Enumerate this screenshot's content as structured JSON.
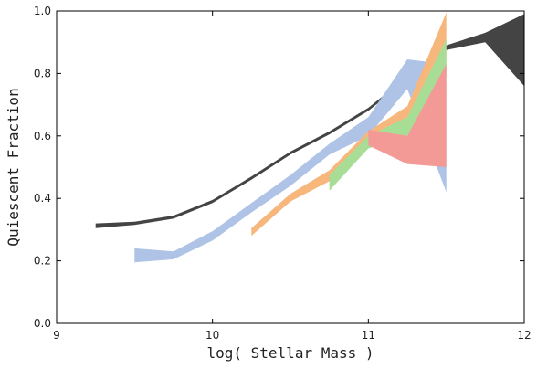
{
  "chart_data": {
    "type": "area",
    "xlabel": "log( Stellar Mass )",
    "ylabel": "Quiescent Fraction",
    "xlim": [
      9,
      12
    ],
    "ylim": [
      0.0,
      1.0
    ],
    "xticks": [
      9,
      10,
      11,
      12
    ],
    "xtick_labels": [
      "9",
      "10",
      "11",
      "12"
    ],
    "yticks": [
      0.0,
      0.2,
      0.4,
      0.6,
      0.8,
      1.0
    ],
    "ytick_labels": [
      "0.0",
      "0.2",
      "0.4",
      "0.6",
      "0.8",
      "1.0"
    ],
    "grid": false,
    "series": [
      {
        "color": "#444444",
        "x": [
          9.25,
          9.5,
          9.75,
          10.0,
          10.25,
          10.5,
          10.75,
          11.0,
          11.25,
          11.5,
          11.75,
          12.0
        ],
        "lower": [
          0.305,
          0.315,
          0.335,
          0.385,
          0.46,
          0.54,
          0.605,
          0.68,
          0.78,
          0.875,
          0.9,
          0.76
        ],
        "upper": [
          0.32,
          0.325,
          0.345,
          0.395,
          0.47,
          0.55,
          0.615,
          0.69,
          0.79,
          0.89,
          0.93,
          0.99
        ]
      },
      {
        "color": "#aec3e6",
        "x": [
          9.5,
          9.75,
          10.0,
          10.25,
          10.5,
          10.75,
          11.0,
          11.25,
          11.5
        ],
        "lower": [
          0.195,
          0.205,
          0.265,
          0.355,
          0.44,
          0.54,
          0.6,
          0.75,
          0.42
        ],
        "upper": [
          0.24,
          0.23,
          0.295,
          0.385,
          0.475,
          0.575,
          0.66,
          0.845,
          0.83
        ]
      },
      {
        "color": "#f7b77c",
        "x": [
          10.25,
          10.5,
          10.75,
          11.0,
          11.25,
          11.5
        ],
        "lower": [
          0.28,
          0.39,
          0.455,
          0.58,
          0.64,
          0.83
        ],
        "upper": [
          0.305,
          0.415,
          0.49,
          0.615,
          0.695,
          0.995
        ]
      },
      {
        "color": "#a8dd96",
        "x": [
          10.75,
          11.0,
          11.25,
          11.5
        ],
        "lower": [
          0.425,
          0.56,
          0.6,
          0.79
        ],
        "upper": [
          0.475,
          0.6,
          0.66,
          0.91
        ]
      },
      {
        "color": "#f49a96",
        "x": [
          11.0,
          11.25,
          11.5
        ],
        "lower": [
          0.57,
          0.51,
          0.5
        ],
        "upper": [
          0.62,
          0.6,
          0.83
        ]
      }
    ]
  }
}
